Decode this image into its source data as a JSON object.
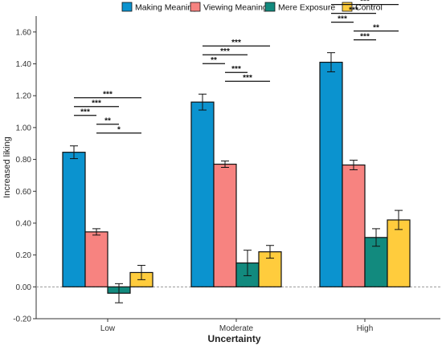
{
  "chart_data": {
    "type": "bar",
    "title": "",
    "xlabel": "Uncertainty",
    "ylabel": "Increased liking",
    "categories": [
      "Low",
      "Moderate",
      "High"
    ],
    "ylim": [
      -0.2,
      1.7
    ],
    "yticks": [
      "-0.20",
      "0.00",
      "0.20",
      "0.40",
      "0.60",
      "0.80",
      "1.00",
      "1.20",
      "1.40",
      "1.60"
    ],
    "yticks_values": [
      -0.2,
      0,
      0.2,
      0.4,
      0.6,
      0.8,
      1.0,
      1.2,
      1.4,
      1.6
    ],
    "legend_position": "top",
    "grid": false,
    "reference_line": 0,
    "series": [
      {
        "name": "Making Meaning",
        "color": "#0B93CF",
        "values": [
          0.845,
          1.16,
          1.41
        ],
        "errors": [
          0.04,
          0.05,
          0.06
        ]
      },
      {
        "name": "Viewing Meaning",
        "color": "#F78380",
        "values": [
          0.345,
          0.77,
          0.765
        ],
        "errors": [
          0.02,
          0.02,
          0.03
        ]
      },
      {
        "name": "Mere Exposure",
        "color": "#128A7E",
        "values": [
          -0.04,
          0.15,
          0.31
        ],
        "errors": [
          0.06,
          0.08,
          0.055
        ]
      },
      {
        "name": "Control",
        "color": "#FFCC3D",
        "values": [
          0.09,
          0.22,
          0.42
        ],
        "errors": [
          0.045,
          0.04,
          0.06
        ]
      }
    ],
    "significance": [
      {
        "category": 0,
        "from": 0,
        "to": 3,
        "label": "***"
      },
      {
        "category": 0,
        "from": 0,
        "to": 2,
        "label": "***"
      },
      {
        "category": 0,
        "from": 0,
        "to": 1,
        "label": "***"
      },
      {
        "category": 0,
        "from": 1,
        "to": 2,
        "label": "**"
      },
      {
        "category": 0,
        "from": 1,
        "to": 3,
        "label": "*"
      },
      {
        "category": 1,
        "from": 0,
        "to": 3,
        "label": "***"
      },
      {
        "category": 1,
        "from": 0,
        "to": 2,
        "label": "***"
      },
      {
        "category": 1,
        "from": 0,
        "to": 1,
        "label": "**"
      },
      {
        "category": 1,
        "from": 1,
        "to": 2,
        "label": "***"
      },
      {
        "category": 1,
        "from": 1,
        "to": 3,
        "label": "***"
      },
      {
        "category": 2,
        "from": 0,
        "to": 3,
        "label": "***"
      },
      {
        "category": 2,
        "from": 0,
        "to": 2,
        "label": "***"
      },
      {
        "category": 2,
        "from": 0,
        "to": 1,
        "label": "***"
      },
      {
        "category": 2,
        "from": 1,
        "to": 3,
        "label": "**"
      },
      {
        "category": 2,
        "from": 1,
        "to": 2,
        "label": "***"
      }
    ]
  }
}
